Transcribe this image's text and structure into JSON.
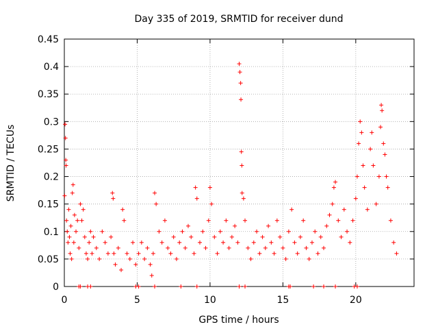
{
  "chart_data": {
    "type": "scatter",
    "title": "Day 335 of 2019, SRMTID for receiver dund",
    "xlabel": "GPS time / hours",
    "ylabel": "SRMTID / TECUs",
    "xlim": [
      0,
      24
    ],
    "ylim": [
      0,
      0.45
    ],
    "x_ticks": [
      0,
      5,
      10,
      15,
      20
    ],
    "x_tick_labels": [
      "0",
      "5",
      "10",
      "15",
      "20"
    ],
    "y_ticks": [
      0,
      0.05,
      0.1,
      0.15,
      0.2,
      0.25,
      0.3,
      0.35,
      0.4,
      0.45
    ],
    "y_tick_labels": [
      "0",
      "0.05",
      "0.1",
      "0.15",
      "0.2",
      "0.25",
      "0.3",
      "0.35",
      "0.4",
      "0.45"
    ],
    "grid": true,
    "marker": "+",
    "series": [
      {
        "name": "SRMTID",
        "color": "#ff0000",
        "points": [
          [
            0.02,
            0.165
          ],
          [
            0.05,
            0.295
          ],
          [
            0.08,
            0.27
          ],
          [
            0.1,
            0.23
          ],
          [
            0.12,
            0.22
          ],
          [
            0.15,
            0.12
          ],
          [
            0.2,
            0.1
          ],
          [
            0.25,
            0.08
          ],
          [
            0.3,
            0.14
          ],
          [
            0.35,
            0.09
          ],
          [
            0.4,
            0.06
          ],
          [
            0.45,
            0.11
          ],
          [
            0.5,
            0.05
          ],
          [
            0.55,
            0.17
          ],
          [
            0.6,
            0.185
          ],
          [
            0.65,
            0.08
          ],
          [
            0.7,
            0.13
          ],
          [
            0.8,
            0.1
          ],
          [
            0.9,
            0.12
          ],
          [
            1.0,
            0.07
          ],
          [
            1.1,
            0.15
          ],
          [
            1.2,
            0.12
          ],
          [
            1.3,
            0.14
          ],
          [
            1.4,
            0.09
          ],
          [
            1.5,
            0.06
          ],
          [
            1.6,
            0.05
          ],
          [
            1.7,
            0.08
          ],
          [
            1.8,
            0.1
          ],
          [
            1.9,
            0.06
          ],
          [
            2.0,
            0.09
          ],
          [
            2.2,
            0.07
          ],
          [
            2.4,
            0.05
          ],
          [
            2.6,
            0.1
          ],
          [
            2.8,
            0.08
          ],
          [
            3.0,
            0.06
          ],
          [
            3.2,
            0.09
          ],
          [
            3.3,
            0.17
          ],
          [
            3.35,
            0.16
          ],
          [
            3.4,
            0.06
          ],
          [
            3.5,
            0.04
          ],
          [
            3.7,
            0.07
          ],
          [
            3.9,
            0.03
          ],
          [
            4.0,
            0.14
          ],
          [
            4.1,
            0.12
          ],
          [
            4.3,
            0.06
          ],
          [
            4.5,
            0.05
          ],
          [
            4.7,
            0.08
          ],
          [
            4.9,
            0.04
          ],
          [
            5.1,
            0.06
          ],
          [
            5.3,
            0.08
          ],
          [
            5.5,
            0.05
          ],
          [
            5.7,
            0.07
          ],
          [
            5.9,
            0.04
          ],
          [
            6.0,
            0.02
          ],
          [
            6.1,
            0.06
          ],
          [
            6.2,
            0.17
          ],
          [
            6.3,
            0.15
          ],
          [
            6.5,
            0.1
          ],
          [
            6.7,
            0.08
          ],
          [
            6.9,
            0.12
          ],
          [
            7.1,
            0.07
          ],
          [
            7.3,
            0.06
          ],
          [
            7.5,
            0.09
          ],
          [
            7.7,
            0.05
          ],
          [
            7.9,
            0.08
          ],
          [
            8.1,
            0.1
          ],
          [
            8.3,
            0.07
          ],
          [
            8.5,
            0.11
          ],
          [
            8.7,
            0.09
          ],
          [
            8.9,
            0.06
          ],
          [
            9.0,
            0.18
          ],
          [
            9.1,
            0.16
          ],
          [
            9.3,
            0.08
          ],
          [
            9.5,
            0.1
          ],
          [
            9.7,
            0.07
          ],
          [
            9.9,
            0.12
          ],
          [
            10.0,
            0.18
          ],
          [
            10.1,
            0.15
          ],
          [
            10.3,
            0.09
          ],
          [
            10.5,
            0.06
          ],
          [
            10.7,
            0.1
          ],
          [
            10.9,
            0.08
          ],
          [
            11.1,
            0.12
          ],
          [
            11.3,
            0.07
          ],
          [
            11.5,
            0.09
          ],
          [
            11.7,
            0.11
          ],
          [
            11.9,
            0.08
          ],
          [
            12.0,
            0.405
          ],
          [
            12.05,
            0.39
          ],
          [
            12.1,
            0.37
          ],
          [
            12.12,
            0.34
          ],
          [
            12.15,
            0.245
          ],
          [
            12.18,
            0.22
          ],
          [
            12.2,
            0.17
          ],
          [
            12.3,
            0.16
          ],
          [
            12.4,
            0.12
          ],
          [
            12.6,
            0.07
          ],
          [
            12.8,
            0.05
          ],
          [
            13.0,
            0.08
          ],
          [
            13.2,
            0.1
          ],
          [
            13.4,
            0.06
          ],
          [
            13.6,
            0.09
          ],
          [
            13.8,
            0.07
          ],
          [
            14.0,
            0.11
          ],
          [
            14.2,
            0.08
          ],
          [
            14.4,
            0.06
          ],
          [
            14.6,
            0.12
          ],
          [
            14.8,
            0.09
          ],
          [
            15.0,
            0.07
          ],
          [
            15.2,
            0.05
          ],
          [
            15.4,
            0.1
          ],
          [
            15.6,
            0.14
          ],
          [
            15.8,
            0.08
          ],
          [
            16.0,
            0.06
          ],
          [
            16.2,
            0.09
          ],
          [
            16.4,
            0.12
          ],
          [
            16.6,
            0.07
          ],
          [
            16.8,
            0.05
          ],
          [
            17.0,
            0.08
          ],
          [
            17.2,
            0.1
          ],
          [
            17.4,
            0.06
          ],
          [
            17.6,
            0.09
          ],
          [
            17.8,
            0.07
          ],
          [
            18.0,
            0.11
          ],
          [
            18.2,
            0.13
          ],
          [
            18.4,
            0.15
          ],
          [
            18.5,
            0.18
          ],
          [
            18.6,
            0.19
          ],
          [
            18.8,
            0.12
          ],
          [
            19.0,
            0.09
          ],
          [
            19.2,
            0.14
          ],
          [
            19.4,
            0.1
          ],
          [
            19.6,
            0.08
          ],
          [
            19.8,
            0.12
          ],
          [
            20.0,
            0.16
          ],
          [
            20.1,
            0.2
          ],
          [
            20.2,
            0.26
          ],
          [
            20.3,
            0.3
          ],
          [
            20.4,
            0.28
          ],
          [
            20.5,
            0.22
          ],
          [
            20.6,
            0.18
          ],
          [
            20.8,
            0.14
          ],
          [
            21.0,
            0.25
          ],
          [
            21.1,
            0.28
          ],
          [
            21.2,
            0.22
          ],
          [
            21.4,
            0.15
          ],
          [
            21.6,
            0.2
          ],
          [
            21.7,
            0.29
          ],
          [
            21.75,
            0.33
          ],
          [
            21.8,
            0.32
          ],
          [
            21.9,
            0.26
          ],
          [
            22.0,
            0.24
          ],
          [
            22.1,
            0.2
          ],
          [
            22.2,
            0.18
          ],
          [
            22.4,
            0.12
          ],
          [
            22.6,
            0.08
          ],
          [
            22.8,
            0.06
          ]
        ],
        "zero_points": [
          1.0,
          1.1,
          1.6,
          1.8,
          4.9,
          5.1,
          6.2,
          8.0,
          9.1,
          12.0,
          12.4,
          15.4,
          15.5,
          17.1,
          17.8,
          18.6,
          19.9,
          20.1
        ]
      }
    ]
  }
}
